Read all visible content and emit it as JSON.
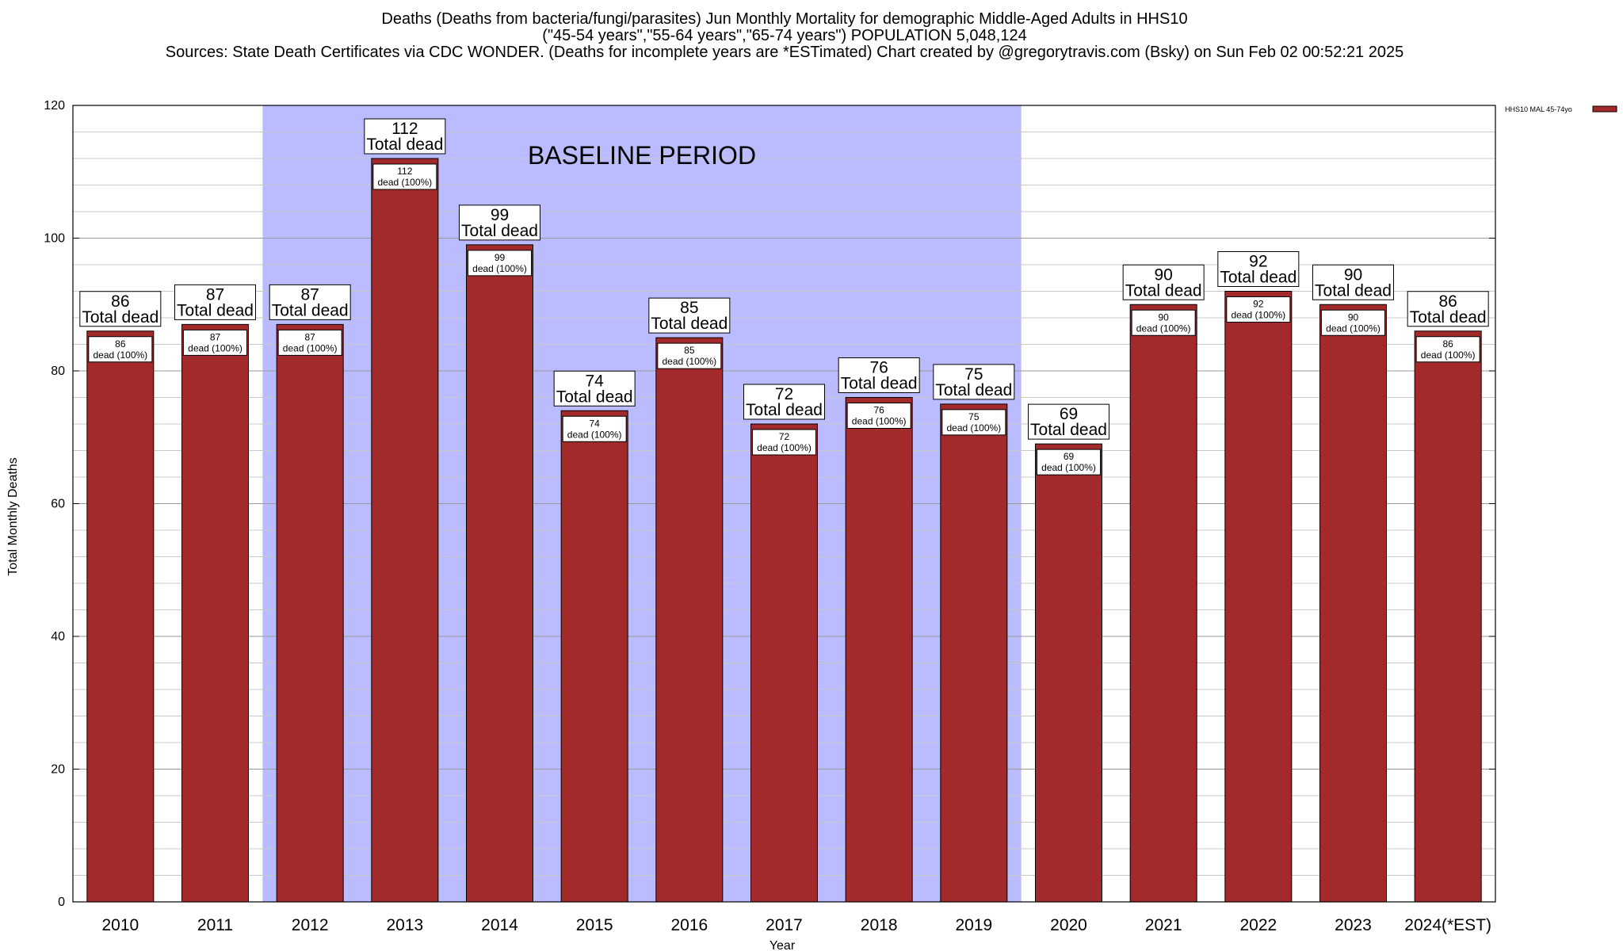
{
  "chart_data": {
    "type": "bar",
    "title_lines": [
      "Deaths (Deaths from bacteria/fungi/parasites) Jun Monthly Mortality for demographic Middle-Aged Adults in HHS10",
      "(\"45-54 years\",\"55-64 years\",\"65-74 years\") POPULATION 5,048,124",
      "Sources: State Death Certificates via CDC WONDER. (Deaths for incomplete years are *ESTimated)                Chart created by @gregorytravis.com (Bsky) on Sun Feb 02 00:52:21 2025"
    ],
    "xlabel": "Year",
    "ylabel": "Total Monthly Deaths",
    "ylim": [
      0,
      120
    ],
    "y_ticks": [
      0,
      20,
      40,
      60,
      80,
      100,
      120
    ],
    "y_minor_step": 4,
    "grid": true,
    "categories": [
      "2010",
      "2011",
      "2012",
      "2013",
      "2014",
      "2015",
      "2016",
      "2017",
      "2018",
      "2019",
      "2020",
      "2021",
      "2022",
      "2023",
      "2024(*EST)"
    ],
    "series": [
      {
        "name": "HHS10 MAL 45-74yo",
        "values": [
          86,
          87,
          87,
          112,
          99,
          74,
          85,
          72,
          76,
          75,
          69,
          90,
          92,
          90,
          86
        ],
        "color": "#a32a2a"
      }
    ],
    "value_label_suffix": "Total dead",
    "inner_label_suffix": "dead (100%)",
    "shaded_region": {
      "label": "BASELINE PERIOD",
      "from_category": "2012",
      "to_category": "2019",
      "color": "#bbbbff"
    },
    "legend_position": "top-right"
  }
}
